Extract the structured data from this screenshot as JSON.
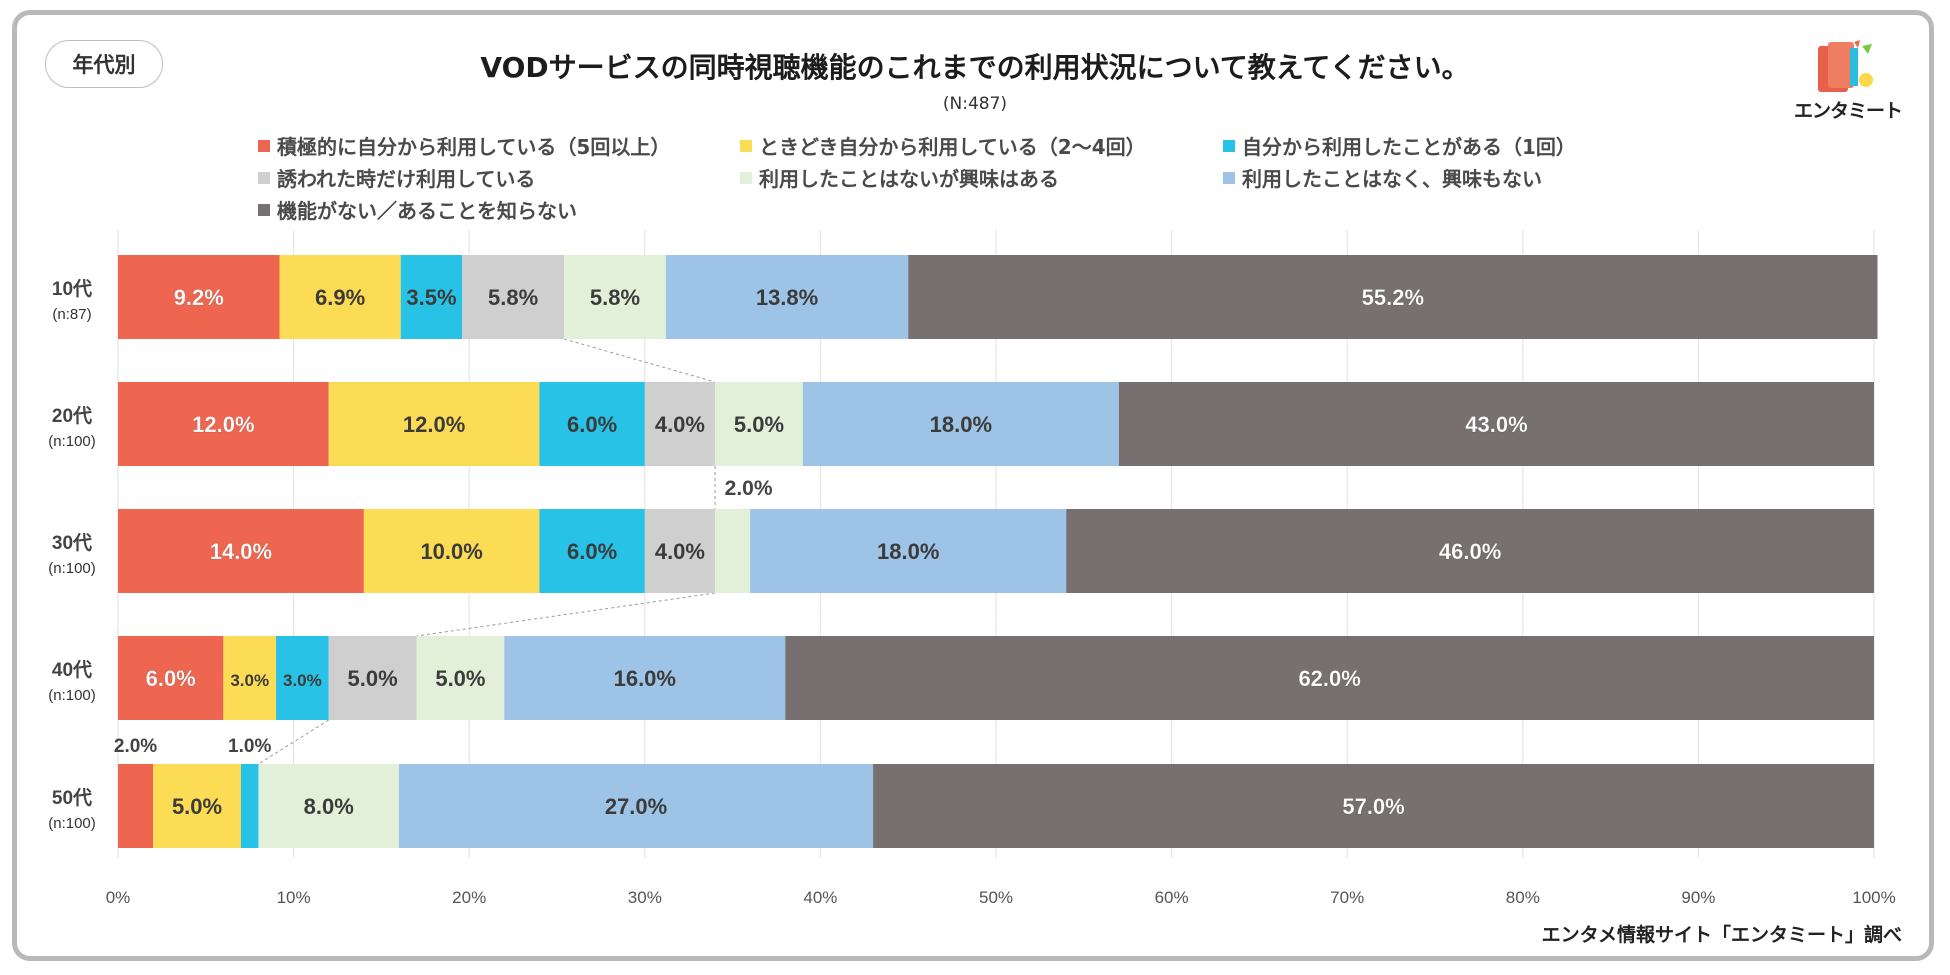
{
  "badge": "年代別",
  "title": "VODサービスの同時視聴機能のこれまでの利用状況について教えてください。",
  "subtitle": "(N:487)",
  "credit": "エンタメ情報サイト「エンタミート」調べ",
  "logo": {
    "text": "エンタミート"
  },
  "colors": {
    "frame": "#b9b9b9",
    "series": [
      "#ef6650",
      "#fddc55",
      "#27c2e6",
      "#cfcfcf",
      "#e3f0d9",
      "#9dc3e6",
      "#767070"
    ]
  },
  "chart_data": {
    "type": "bar",
    "orientation": "horizontal",
    "stacked": "percent",
    "title": "VODサービスの同時視聴機能のこれまでの利用状況について教えてください。",
    "categories": [
      "10代",
      "20代",
      "30代",
      "40代",
      "50代"
    ],
    "sample_sizes": [
      "(n:87)",
      "(n:100)",
      "(n:100)",
      "(n:100)",
      "(n:100)"
    ],
    "series": [
      {
        "name": "積極的に自分から利用している（5回以上）",
        "values": [
          9.2,
          12.0,
          14.0,
          6.0,
          2.0
        ],
        "labels": [
          "9.2%",
          "12.0%",
          "14.0%",
          "6.0%",
          "2.0%"
        ]
      },
      {
        "name": "ときどき自分から利用している（2〜4回）",
        "values": [
          6.9,
          12.0,
          10.0,
          3.0,
          5.0
        ],
        "labels": [
          "6.9%",
          "12.0%",
          "10.0%",
          "3.0%",
          "5.0%"
        ]
      },
      {
        "name": "自分から利用したことがある（1回）",
        "values": [
          3.5,
          6.0,
          6.0,
          3.0,
          1.0
        ],
        "labels": [
          "3.5%",
          "6.0%",
          "6.0%",
          "3.0%",
          "1.0%"
        ]
      },
      {
        "name": "誘われた時だけ利用している",
        "values": [
          5.8,
          4.0,
          4.0,
          5.0,
          0.0
        ],
        "labels": [
          "5.8%",
          "4.0%",
          "4.0%",
          "5.0%",
          ""
        ]
      },
      {
        "name": "利用したことはないが興味はある",
        "values": [
          5.8,
          5.0,
          2.0,
          5.0,
          8.0
        ],
        "labels": [
          "5.8%",
          "5.0%",
          "2.0%",
          "5.0%",
          "8.0%"
        ]
      },
      {
        "name": "利用したことはなく、興味もない",
        "values": [
          13.8,
          18.0,
          18.0,
          16.0,
          27.0
        ],
        "labels": [
          "13.8%",
          "18.0%",
          "18.0%",
          "16.0%",
          "27.0%"
        ]
      },
      {
        "name": "機能がない／あることを知らない",
        "values": [
          55.2,
          43.0,
          46.0,
          62.0,
          57.0
        ],
        "labels": [
          "55.2%",
          "43.0%",
          "46.0%",
          "62.0%",
          "57.0%"
        ]
      }
    ],
    "xlim": [
      0,
      100
    ],
    "xticks": [
      "0%",
      "10%",
      "20%",
      "30%",
      "40%",
      "50%",
      "60%",
      "70%",
      "80%",
      "90%",
      "100%"
    ],
    "gridlines": true,
    "legend_position": "top"
  }
}
